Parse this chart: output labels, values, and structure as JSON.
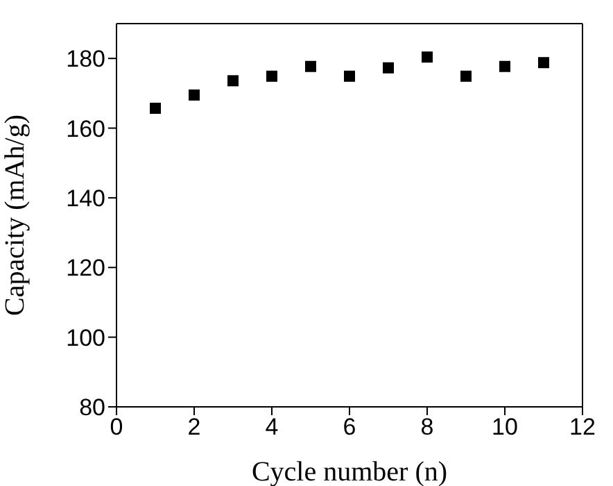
{
  "chart_data": {
    "type": "scatter",
    "xlabel": "Cycle number (n)",
    "ylabel": "Capacity (mAh/g)",
    "x": [
      1,
      2,
      3,
      4,
      5,
      6,
      7,
      8,
      9,
      10,
      11
    ],
    "series": [
      {
        "color": "#000000",
        "values": [
          165.7,
          169.5,
          173.6,
          174.9,
          177.7,
          174.9,
          177.3,
          180.4,
          174.9,
          177.7,
          178.8
        ]
      }
    ],
    "xlim": [
      0,
      12
    ],
    "xticks": [
      0,
      2,
      4,
      6,
      8,
      10,
      12
    ],
    "ylim": [
      80,
      190
    ],
    "yticks": [
      80,
      100,
      120,
      140,
      160,
      180
    ],
    "marker": "square",
    "grid": false
  }
}
